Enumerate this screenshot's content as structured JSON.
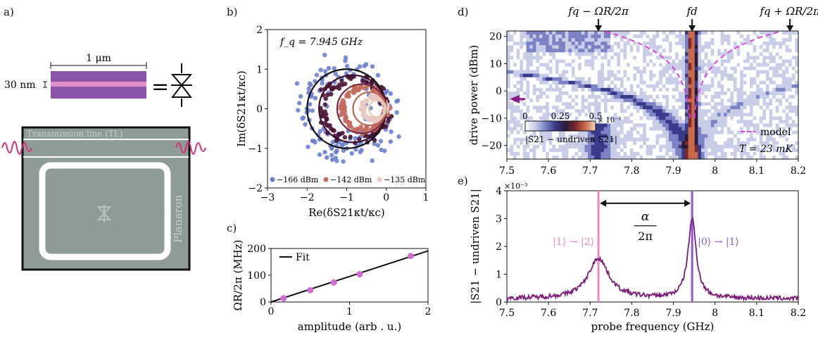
{
  "panel_labels": {
    "a": "a)",
    "b": "b)",
    "c": "c)",
    "d": "d)",
    "e": "e)"
  },
  "panel_a": {
    "width_label": "1 μm",
    "thickness_label": "30 nm",
    "equals": "=",
    "tl_label": "Transmission line (TL)",
    "device_label": "Planaron",
    "colors": {
      "device_fill": "#8e9c95",
      "film": "#8a55a8",
      "film_stripe": "#e48ec9",
      "pulse": "#d6307a"
    }
  },
  "chart_data": [
    {
      "id": "b",
      "type": "scatter",
      "annotation": "f_q = 7.945 GHz",
      "xlabel": "Re(δS21κt/κc)",
      "ylabel": "Im(δS21κt/κc)",
      "xlim": [
        -3,
        1
      ],
      "ylim": [
        -2,
        2
      ],
      "xticks": [
        -3,
        -2,
        -1,
        0,
        1
      ],
      "yticks": [
        -2,
        -1,
        0,
        1,
        2
      ],
      "legend": [
        "−166 dBm",
        "−142 dBm",
        "−135 dBm"
      ],
      "legend_colors": [
        "#6a7fcf",
        "#c46a5e",
        "#e8c8c0"
      ],
      "circles": [
        {
          "cx": -1.0,
          "r": 1.0,
          "color": "#111111"
        },
        {
          "cx": -0.85,
          "r": 0.85,
          "color": "#3a1230"
        },
        {
          "cx": -0.62,
          "r": 0.62,
          "color": "#7a2d3f"
        },
        {
          "cx": -0.42,
          "r": 0.42,
          "color": "#b76a55"
        },
        {
          "cx": -0.22,
          "r": 0.22,
          "color": "#e8c8a8"
        }
      ]
    },
    {
      "id": "c",
      "type": "scatter",
      "xlabel": "amplitude (arb . u.)",
      "ylabel": "ΩR/2π (MHz)",
      "xlim": [
        0,
        2
      ],
      "ylim": [
        0,
        200
      ],
      "xticks": [
        0,
        1,
        2
      ],
      "yticks": [
        0,
        100,
        200
      ],
      "x": [
        0.16,
        0.5,
        0.8,
        1.13,
        1.78
      ],
      "y": [
        14,
        44,
        73,
        104,
        172
      ],
      "fit": {
        "slope": 95.5,
        "intercept": 0,
        "label": "Fit"
      }
    },
    {
      "id": "d",
      "type": "heatmap",
      "xlabel": "",
      "ylabel": "drive power (dBm)",
      "xlim": [
        7.5,
        8.2
      ],
      "ylim": [
        -25,
        22
      ],
      "xticks": [
        7.5,
        7.6,
        7.7,
        7.8,
        7.9,
        8,
        8.1,
        8.2
      ],
      "yticks": [
        -20,
        -10,
        0,
        10,
        20
      ],
      "top_annotations": [
        "fq − ΩR/2π",
        "fd",
        "fq + ΩR/2π"
      ],
      "colorbar": {
        "ticks": [
          "0",
          "0.25",
          "0.5"
        ],
        "scale": "× 10⁻³",
        "label": "|S21 − undriven S21|"
      },
      "legend": "model",
      "temperature": "T = 23 mK",
      "drive_freq": 7.945,
      "marker_power": -3
    },
    {
      "id": "e",
      "type": "line",
      "xlabel": "probe frequency (GHz)",
      "ylabel": "|S21 − undriven S21|",
      "scale_label": "×10⁻³",
      "xlim": [
        7.5,
        8.2
      ],
      "ylim": [
        0,
        4
      ],
      "xticks": [
        7.5,
        7.6,
        7.7,
        7.8,
        7.9,
        8,
        8.1,
        8.2
      ],
      "yticks": [
        0,
        1,
        2,
        3,
        4
      ],
      "peaks": [
        {
          "f": 7.72,
          "amp": 1.45,
          "w": 0.03
        },
        {
          "f": 7.945,
          "amp": 2.85,
          "w": 0.012
        }
      ],
      "baseline": 0.12,
      "line_color": "#7a1c78",
      "marker_lines": [
        {
          "f": 7.72,
          "color": "#ef86c4",
          "label": "|1⟩ → |2⟩"
        },
        {
          "f": 7.945,
          "color": "#8a5ad8",
          "label": "|0⟩ → |1⟩"
        }
      ],
      "alpha_label_num": "α",
      "alpha_label_den": "2π"
    }
  ]
}
